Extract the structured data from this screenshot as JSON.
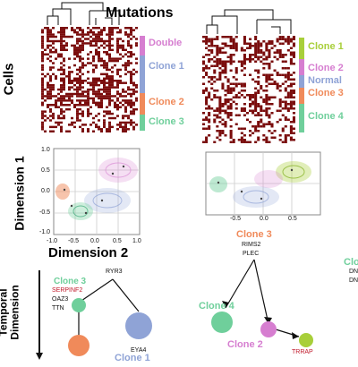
{
  "heatmaps": {
    "mutations_label": "Mutations",
    "cells_label": "Cells",
    "left_clusters": [
      {
        "name": "Double",
        "color": "#d67ed0"
      },
      {
        "name": "Clone 1",
        "color": "#8fa3d6"
      },
      {
        "name": "Clone 2",
        "color": "#f08a5a"
      },
      {
        "name": "Clone 3",
        "color": "#6fcf9b"
      }
    ],
    "right_clusters": [
      {
        "name": "Clone 1",
        "color": "#a8cf3a"
      },
      {
        "name": "Clone 2",
        "color": "#d67ed0"
      },
      {
        "name": "Normal",
        "color": "#8fa3d6"
      },
      {
        "name": "Clone 3",
        "color": "#f08a5a"
      },
      {
        "name": "Clone 4",
        "color": "#6fcf9b"
      }
    ],
    "cell_color": "#7a0c0c"
  },
  "embedding": {
    "y_label": "Dimension 1",
    "x_label": "Dimension 2",
    "left_ticks_x": [
      "-1.0",
      "-0.5",
      "0.0",
      "0.5",
      "1.0"
    ],
    "left_ticks_y": [
      "1.0",
      "0.5",
      "0.0",
      "-0.5",
      "-1.0"
    ],
    "right_ticks_x": [
      "-0.5",
      "0.0",
      "0.5"
    ]
  },
  "trees": {
    "temporal_label": "Temporal",
    "dimension_label": "Dimension",
    "left": {
      "root_gene": "RYR3",
      "clone3_label": "Clone 3",
      "genes_red": "SERPINF2",
      "genes": [
        "OAZ3",
        "TTN"
      ],
      "clone1_gene": "EYA4",
      "clone1_label": "Clone 1"
    },
    "right": {
      "clone3_label": "Clone 3",
      "genes": [
        "RIMS2",
        "PLEC"
      ],
      "clone4_label": "Clone 4",
      "clone2_label": "Clone 2",
      "trrap_gene": "TRRAP"
    },
    "edge": {
      "label": "Clo",
      "lines": [
        "DN",
        "DN"
      ]
    }
  }
}
